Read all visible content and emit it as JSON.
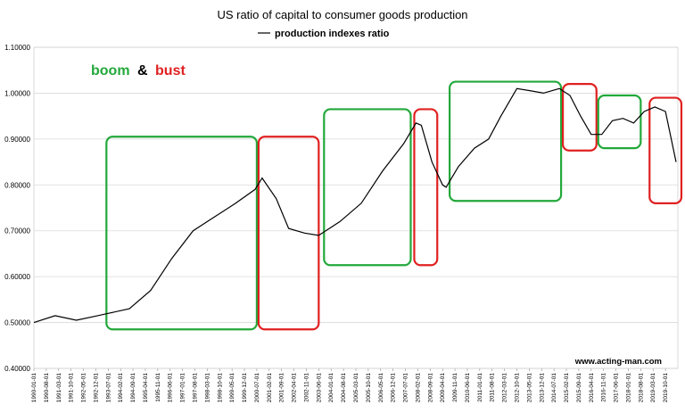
{
  "chart_data": {
    "type": "line",
    "title": "US ratio of capital to consumer goods production",
    "legend": {
      "label": "production indexes ratio",
      "placement": "top-center"
    },
    "series": [
      {
        "name": "production indexes ratio",
        "x": [
          "1990-01-01",
          "1991-01-01",
          "1992-01-01",
          "1993-01-01",
          "1993-07-01",
          "1994-07-01",
          "1995-07-01",
          "1996-07-01",
          "1997-07-01",
          "1998-07-01",
          "1999-07-01",
          "2000-06-01",
          "2000-10-01",
          "2001-06-01",
          "2002-01-01",
          "2002-10-01",
          "2003-06-01",
          "2004-06-01",
          "2005-06-01",
          "2006-06-01",
          "2007-06-01",
          "2008-01-01",
          "2008-04-01",
          "2008-10-01",
          "2009-04-01",
          "2009-06-01",
          "2010-01-01",
          "2010-10-01",
          "2011-06-01",
          "2012-01-01",
          "2012-10-01",
          "2013-06-01",
          "2014-01-01",
          "2014-10-01",
          "2015-04-01",
          "2015-10-01",
          "2016-04-01",
          "2016-10-01",
          "2017-04-01",
          "2017-10-01",
          "2018-04-01",
          "2018-10-01",
          "2019-04-01",
          "2019-10-01",
          "2020-04-01"
        ],
        "values": [
          0.5,
          0.515,
          0.505,
          0.515,
          0.52,
          0.53,
          0.57,
          0.64,
          0.7,
          0.73,
          0.76,
          0.79,
          0.815,
          0.77,
          0.705,
          0.695,
          0.69,
          0.72,
          0.76,
          0.83,
          0.89,
          0.935,
          0.93,
          0.85,
          0.8,
          0.795,
          0.84,
          0.88,
          0.9,
          0.95,
          1.01,
          1.005,
          1.0,
          1.01,
          0.995,
          0.95,
          0.91,
          0.91,
          0.94,
          0.945,
          0.935,
          0.96,
          0.97,
          0.96,
          0.85
        ]
      }
    ],
    "ylim": [
      0.4,
      1.1
    ],
    "yticks": [
      "0.40000",
      "0.50000",
      "0.60000",
      "0.70000",
      "0.80000",
      "0.90000",
      "1.00000",
      "1.10000"
    ],
    "xticks": [
      "1990-01-01",
      "1990-08-01",
      "1991-03-01",
      "1991-10-01",
      "1992-05-01",
      "1992-12-01",
      "1993-07-01",
      "1994-02-01",
      "1994-09-01",
      "1995-04-01",
      "1995-11-01",
      "1996-06-01",
      "1997-01-01",
      "1997-08-01",
      "1998-03-01",
      "1998-10-01",
      "1999-05-01",
      "1999-12-01",
      "2000-07-01",
      "2001-02-01",
      "2001-09-01",
      "2002-04-01",
      "2002-11-01",
      "2003-06-01",
      "2004-01-01",
      "2004-08-01",
      "2005-03-01",
      "2005-10-01",
      "2006-05-01",
      "2006-12-01",
      "2007-07-01",
      "2008-02-01",
      "2008-09-01",
      "2009-04-01",
      "2009-11-01",
      "2010-06-01",
      "2011-01-01",
      "2011-08-01",
      "2012-03-01",
      "2012-10-01",
      "2013-05-01",
      "2013-12-01",
      "2014-07-01",
      "2015-02-01",
      "2015-09-01",
      "2016-04-01",
      "2016-11-01",
      "2017-06-01",
      "2018-01-01",
      "2018-08-01",
      "2019-03-01",
      "2019-10-01"
    ],
    "grid": true,
    "annotations": {
      "boom_label": "boom",
      "amp_label": "&",
      "bust_label": "bust",
      "boom_color": "#22a83a",
      "bust_color": "#e02020",
      "regions": [
        {
          "kind": "boom",
          "x_start": "1993-06-01",
          "x_end": "2000-07-01",
          "y_low": 0.485,
          "y_high": 0.905
        },
        {
          "kind": "bust",
          "x_start": "2000-08-01",
          "x_end": "2003-06-01",
          "y_low": 0.485,
          "y_high": 0.905
        },
        {
          "kind": "boom",
          "x_start": "2003-09-01",
          "x_end": "2007-10-01",
          "y_low": 0.625,
          "y_high": 0.965
        },
        {
          "kind": "bust",
          "x_start": "2007-12-01",
          "x_end": "2009-01-01",
          "y_low": 0.625,
          "y_high": 0.965
        },
        {
          "kind": "boom",
          "x_start": "2009-08-01",
          "x_end": "2014-11-01",
          "y_low": 0.765,
          "y_high": 1.025
        },
        {
          "kind": "bust",
          "x_start": "2014-12-01",
          "x_end": "2016-07-01",
          "y_low": 0.875,
          "y_high": 1.02
        },
        {
          "kind": "boom",
          "x_start": "2016-08-01",
          "x_end": "2018-08-01",
          "y_low": 0.88,
          "y_high": 0.995
        },
        {
          "kind": "bust",
          "x_start": "2019-01-01",
          "x_end": "2020-07-01",
          "y_low": 0.76,
          "y_high": 0.99
        }
      ]
    },
    "line_color": "#000000"
  },
  "watermark": "www.acting-man.com"
}
